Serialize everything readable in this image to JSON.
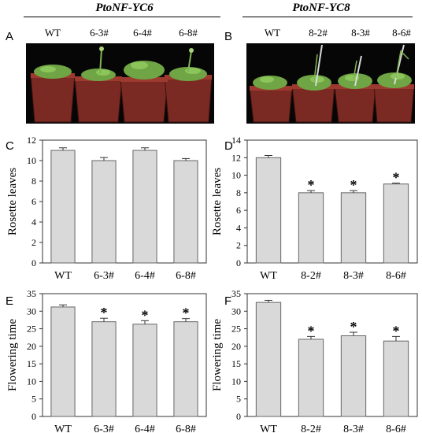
{
  "groups": [
    {
      "title": "PtoNF-YC6",
      "panel": "A",
      "genotypes": [
        "WT",
        "6-3#",
        "6-4#",
        "6-8#"
      ]
    },
    {
      "title": "PtoNF-YC8",
      "panel": "B",
      "genotypes": [
        "WT",
        "8-2#",
        "8-3#",
        "8-6#"
      ]
    }
  ],
  "chart_data": [
    {
      "panel": "C",
      "type": "bar",
      "categories": [
        "WT",
        "6-3#",
        "6-4#",
        "6-8#"
      ],
      "values": [
        11,
        10,
        11,
        10
      ],
      "errors": [
        0.25,
        0.3,
        0.25,
        0.2
      ],
      "significant": [
        false,
        false,
        false,
        false
      ],
      "ylabel": "Rosette leaves",
      "ylim": [
        0,
        12
      ],
      "yticks": [
        0,
        2,
        4,
        6,
        8,
        10,
        12
      ],
      "bar_color": "#d9d9d9"
    },
    {
      "panel": "D",
      "type": "bar",
      "categories": [
        "WT",
        "8-2#",
        "8-3#",
        "8-6#"
      ],
      "values": [
        12,
        8,
        8,
        9
      ],
      "errors": [
        0.25,
        0.25,
        0.25,
        0.1
      ],
      "significant": [
        false,
        true,
        true,
        true
      ],
      "ylabel": "Rosette leaves",
      "ylim": [
        0,
        14
      ],
      "yticks": [
        0,
        2,
        4,
        6,
        8,
        10,
        12,
        14
      ],
      "bar_color": "#d9d9d9"
    },
    {
      "panel": "E",
      "type": "bar",
      "categories": [
        "WT",
        "6-3#",
        "6-4#",
        "6-8#"
      ],
      "values": [
        31.2,
        27,
        26.3,
        27
      ],
      "errors": [
        0.6,
        1.0,
        1.0,
        0.9
      ],
      "significant": [
        false,
        true,
        true,
        true
      ],
      "ylabel": "Flowering time",
      "ylim": [
        0,
        35
      ],
      "yticks": [
        0,
        5,
        10,
        15,
        20,
        25,
        30,
        35
      ],
      "bar_color": "#d9d9d9"
    },
    {
      "panel": "F",
      "type": "bar",
      "categories": [
        "WT",
        "8-2#",
        "8-3#",
        "8-6#"
      ],
      "values": [
        32.5,
        22,
        23,
        21.5
      ],
      "errors": [
        0.6,
        0.8,
        1.0,
        1.3
      ],
      "significant": [
        false,
        true,
        true,
        true
      ],
      "ylabel": "Flowering time",
      "ylim": [
        0,
        35
      ],
      "yticks": [
        0,
        5,
        10,
        15,
        20,
        25,
        30,
        35
      ],
      "bar_color": "#d9d9d9"
    }
  ],
  "significance_mark": "*"
}
